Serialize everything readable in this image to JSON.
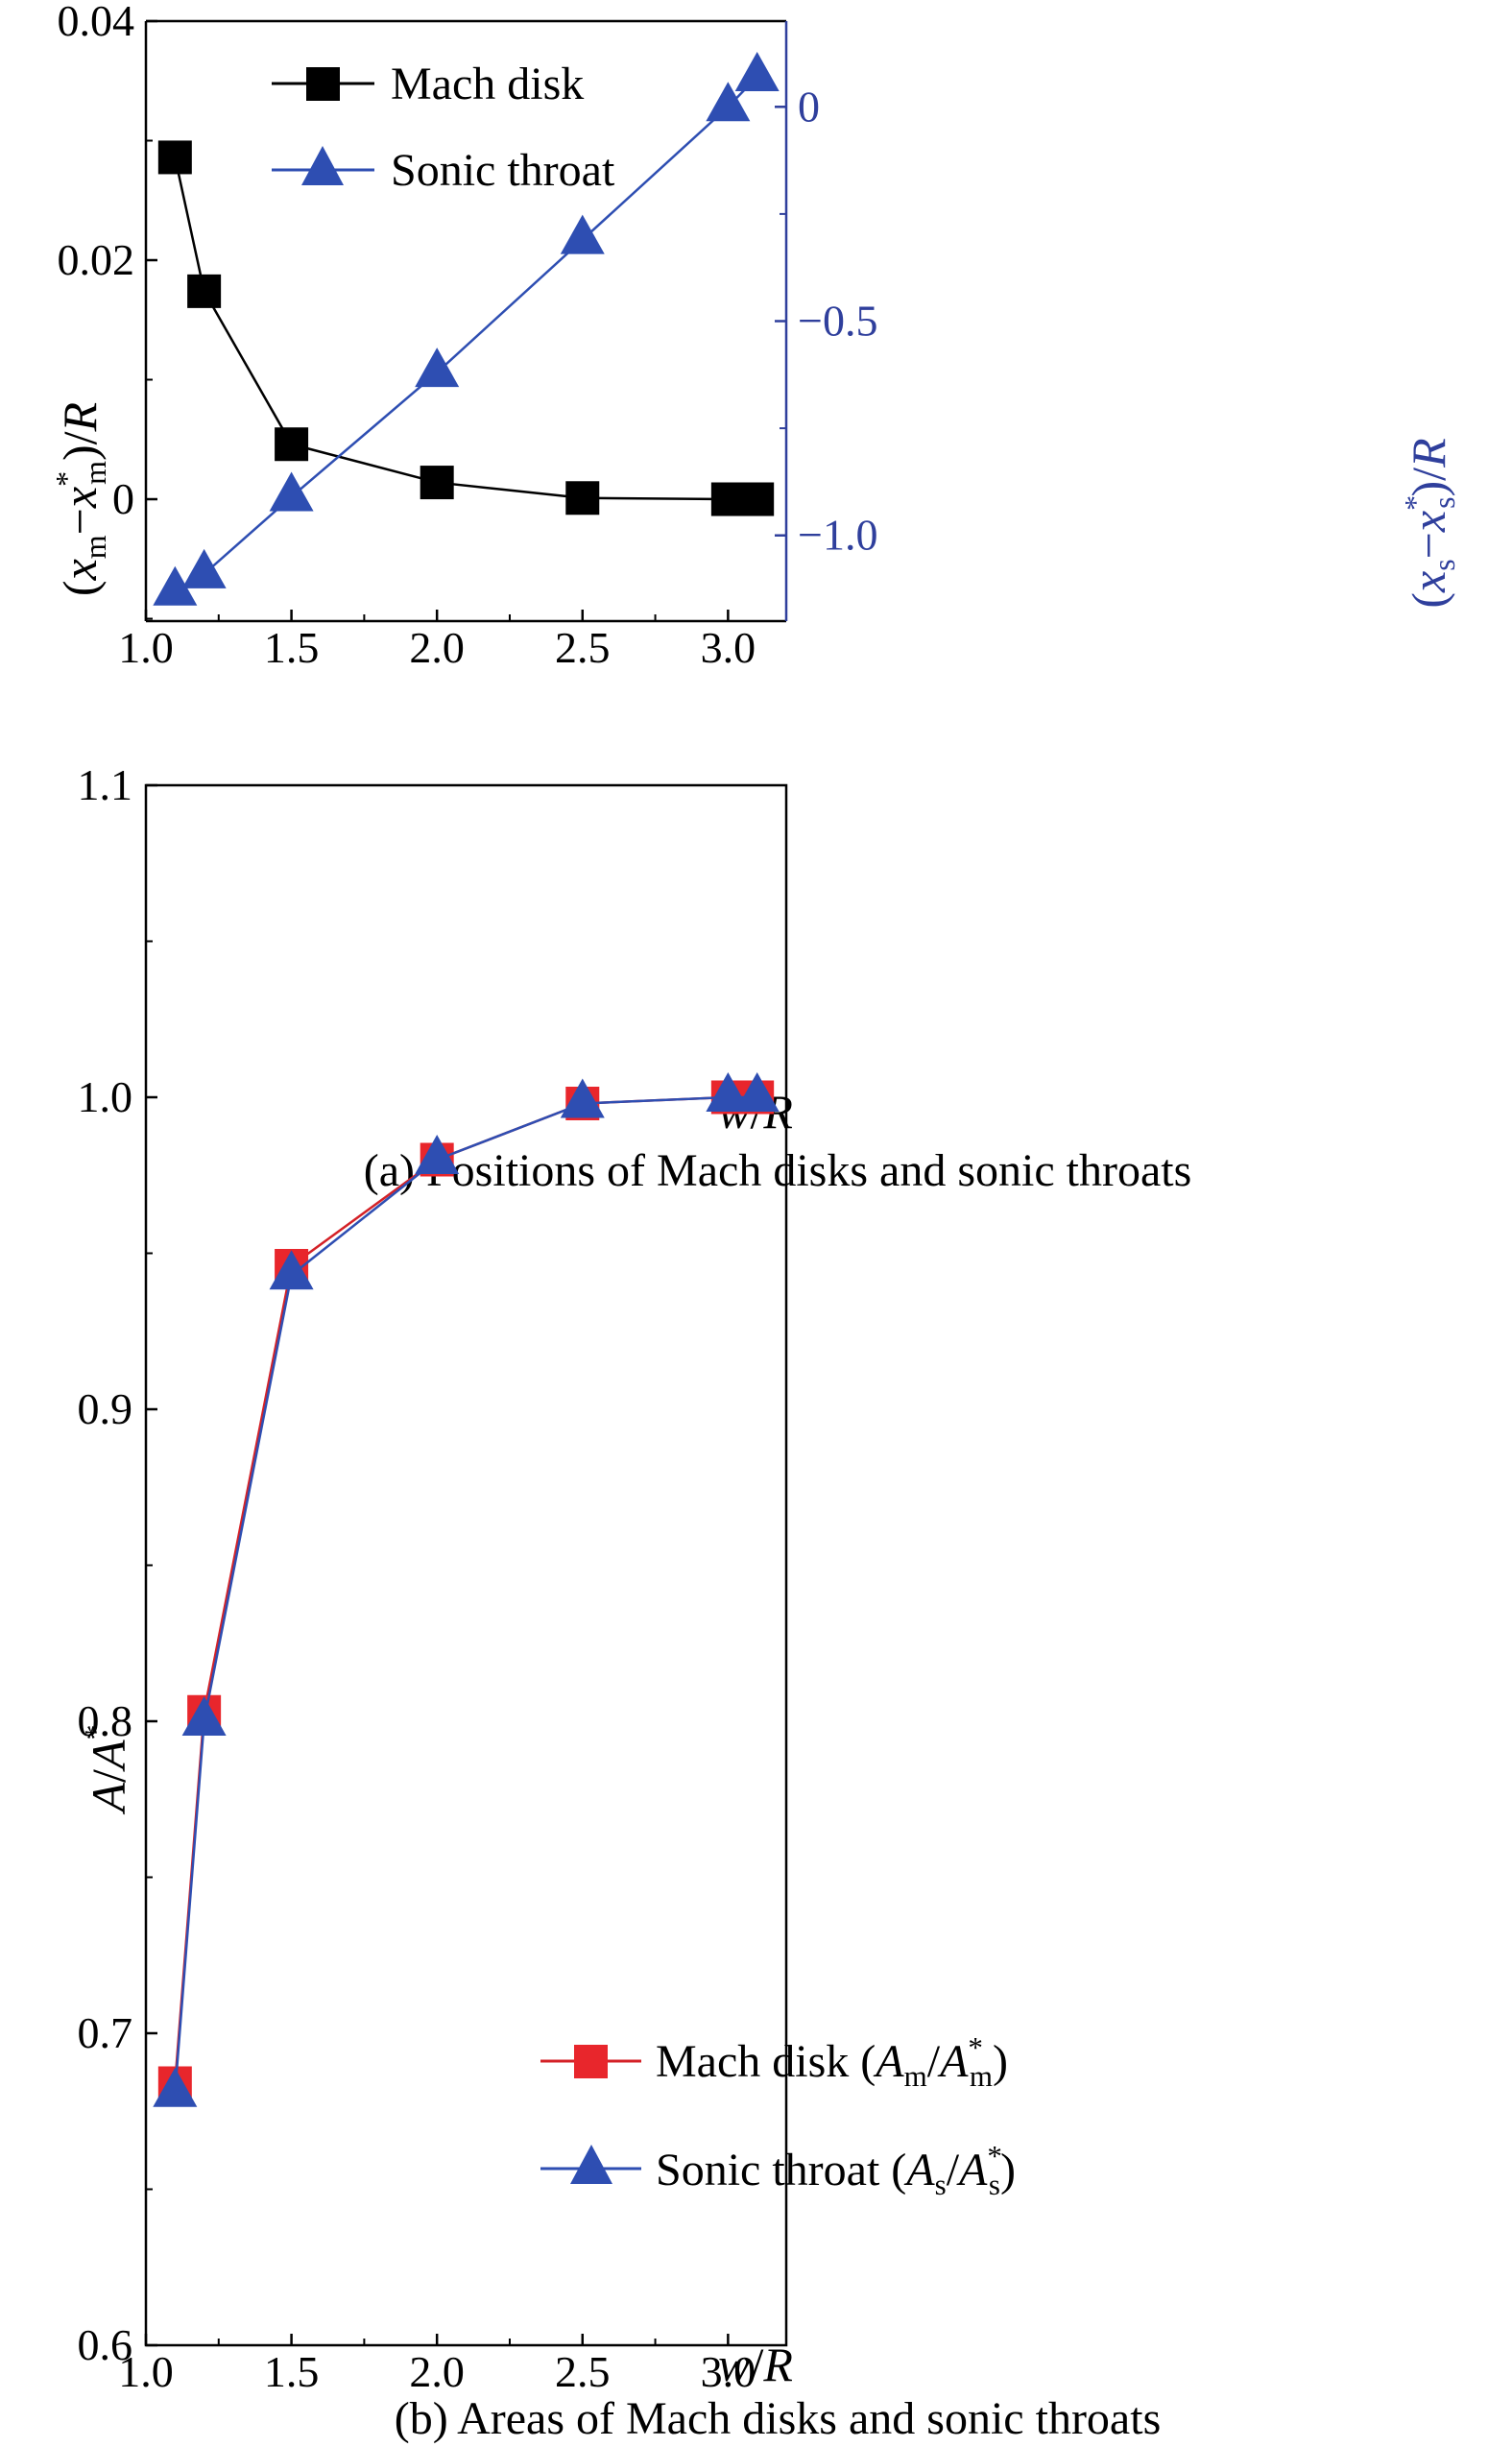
{
  "colors": {
    "black": "#000000",
    "blue": "#2e4eb2",
    "axis_blue": "#2f3f9c",
    "red": "#e8262c",
    "red_line": "#d42127"
  },
  "chart_data": [
    {
      "type": "line",
      "panel": "a",
      "caption": "(a) Positions of Mach disks and sonic throats",
      "xlabel": {
        "var": "w",
        "sep": "/",
        "var2": "R"
      },
      "ylabel_left": {
        "open": "(",
        "x1": "x",
        "s1": "m",
        "minus": "−",
        "x2": "x",
        "sup": "*",
        "s2": "m",
        "close": ")/",
        "R": "R"
      },
      "ylabel_right": {
        "open": "(",
        "x1": "x",
        "s1": "s",
        "minus": "−",
        "x2": "x",
        "sup": "*",
        "s2": "s",
        "close": ")/",
        "R": "R"
      },
      "xlim": [
        1.0,
        3.2
      ],
      "ylim_left": [
        -0.0102,
        0.04
      ],
      "ylim_right": [
        -1.2,
        0.2
      ],
      "xticks": [
        1.0,
        1.5,
        2.0,
        2.5,
        3.0
      ],
      "xtick_labels": [
        "1.0",
        "1.5",
        "2.0",
        "2.5",
        "3.0"
      ],
      "yticks_left": [
        0,
        0.02,
        0.04
      ],
      "ytick_labels_left": [
        "0",
        "0.02",
        "0.04"
      ],
      "yticks_right": [
        0,
        -0.5,
        -1.0
      ],
      "ytick_labels_right": [
        "0",
        "−0.5",
        "−1.0"
      ],
      "x": [
        1.1,
        1.2,
        1.5,
        2.0,
        2.5,
        3.0,
        3.1
      ],
      "series": [
        {
          "name": "Mach disk",
          "axis": "left",
          "marker": "square",
          "color": "#000000",
          "values": [
            0.0286,
            0.0174,
            0.0046,
            0.0014,
            0.0001,
            0.0,
            0.0
          ]
        },
        {
          "name": "Sonic throat",
          "axis": "right",
          "marker": "triangle",
          "color": "#2e4eb2",
          "values": [
            -1.13,
            -1.09,
            -0.91,
            -0.62,
            -0.31,
            0.0,
            0.07
          ]
        }
      ],
      "legend_position": "top-left",
      "grid": false
    },
    {
      "type": "line",
      "panel": "b",
      "caption": "(b) Areas of Mach disks and sonic throats",
      "xlabel": {
        "var": "w",
        "sep": "/",
        "var2": "R"
      },
      "ylabel": {
        "A": "A",
        "sep": "/",
        "A2": "A",
        "sup": "*"
      },
      "xlim": [
        1.0,
        3.2
      ],
      "ylim": [
        0.6,
        1.1
      ],
      "xticks": [
        1.0,
        1.5,
        2.0,
        2.5,
        3.0
      ],
      "xtick_labels": [
        "1.0",
        "1.5",
        "2.0",
        "2.5",
        "3.0"
      ],
      "yticks": [
        0.6,
        0.7,
        0.8,
        0.9,
        1.0,
        1.1
      ],
      "ytick_labels": [
        "0.6",
        "0.7",
        "0.8",
        "0.9",
        "1.0",
        "1.1"
      ],
      "x": [
        1.1,
        1.2,
        1.5,
        2.0,
        2.5,
        3.0,
        3.1
      ],
      "series": [
        {
          "name": "Mach disk",
          "label_parts": {
            "text": "Mach disk (",
            "A1": "A",
            "s1": "m",
            "sep": "/",
            "A2": "A",
            "s2": "m",
            "sup": "*",
            "close": ")"
          },
          "marker": "square",
          "color": "#e8262c",
          "values": [
            0.684,
            0.803,
            0.946,
            0.98,
            0.998,
            1.0,
            1.0
          ]
        },
        {
          "name": "Sonic throat",
          "label_parts": {
            "text": "Sonic throat (",
            "A1": "A",
            "s1": "s",
            "sep": "/",
            "A2": "A",
            "s2": "s",
            "sup": "*",
            "close": ")"
          },
          "marker": "triangle",
          "color": "#2e4eb2",
          "values": [
            0.681,
            0.8,
            0.943,
            0.98,
            0.998,
            1.0,
            1.0
          ]
        }
      ],
      "legend_position": "bottom-right",
      "grid": false
    }
  ]
}
